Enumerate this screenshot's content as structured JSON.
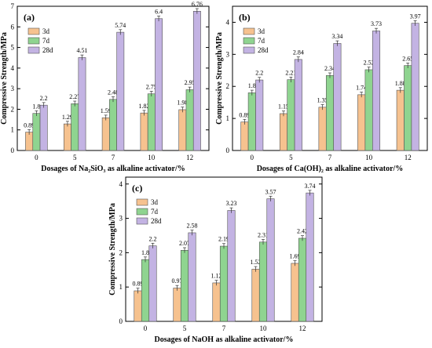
{
  "chart_data": [
    {
      "type": "bar",
      "panel_label": "(a)",
      "xlabel": "Dosages of Na₂SiO₃ as alkaline activator/%",
      "ylabel": "Compressive Strength/MPa",
      "ylim": [
        0,
        7
      ],
      "yticks": [
        0,
        1,
        2,
        3,
        4,
        5,
        6,
        7
      ],
      "categories": [
        "0",
        "5",
        "7",
        "10",
        "12"
      ],
      "series": [
        {
          "name": "3d",
          "values": [
            0.89,
            1.29,
            1.59,
            1.82,
            1.98
          ],
          "color": "#f6c28f"
        },
        {
          "name": "7d",
          "values": [
            1.8,
            2.27,
            2.48,
            2.75,
            2.95
          ],
          "color": "#8fd490"
        },
        {
          "name": "28d",
          "values": [
            2.2,
            4.51,
            5.74,
            6.4,
            6.76
          ],
          "color": "#c3b3e3"
        }
      ],
      "legend": "top-left"
    },
    {
      "type": "bar",
      "panel_label": "(b)",
      "xlabel": "Dosages of Ca(OH)₂ as alkaline activator/%",
      "ylabel": "Compressive Strength/MPa",
      "ylim": [
        0,
        4.5
      ],
      "yticks": [
        0,
        1,
        2,
        3,
        4
      ],
      "categories": [
        "0",
        "5",
        "7",
        "10",
        "12"
      ],
      "series": [
        {
          "name": "3d",
          "values": [
            0.89,
            1.15,
            1.35,
            1.74,
            1.88
          ],
          "color": "#f6c28f"
        },
        {
          "name": "7d",
          "values": [
            1.8,
            2.21,
            2.34,
            2.52,
            2.65
          ],
          "color": "#8fd490"
        },
        {
          "name": "28d",
          "values": [
            2.2,
            2.84,
            3.34,
            3.73,
            3.97
          ],
          "color": "#c3b3e3"
        }
      ],
      "legend": "top-left"
    },
    {
      "type": "bar",
      "panel_label": "(c)",
      "xlabel": "Dosages of NaOH as alkaline activator/%",
      "ylabel": "Compressive Strength/MPa",
      "ylim": [
        0,
        4.2
      ],
      "yticks": [
        0,
        1,
        2,
        3,
        4
      ],
      "categories": [
        "0",
        "5",
        "7",
        "10",
        "12"
      ],
      "series": [
        {
          "name": "3d",
          "values": [
            0.89,
            0.97,
            1.12,
            1.52,
            1.69
          ],
          "color": "#f6c28f"
        },
        {
          "name": "7d",
          "values": [
            1.8,
            2.07,
            2.19,
            2.31,
            2.42
          ],
          "color": "#8fd490"
        },
        {
          "name": "28d",
          "values": [
            2.2,
            2.58,
            3.23,
            3.57,
            3.74
          ],
          "color": "#c3b3e3"
        }
      ],
      "legend": "top-left"
    }
  ]
}
